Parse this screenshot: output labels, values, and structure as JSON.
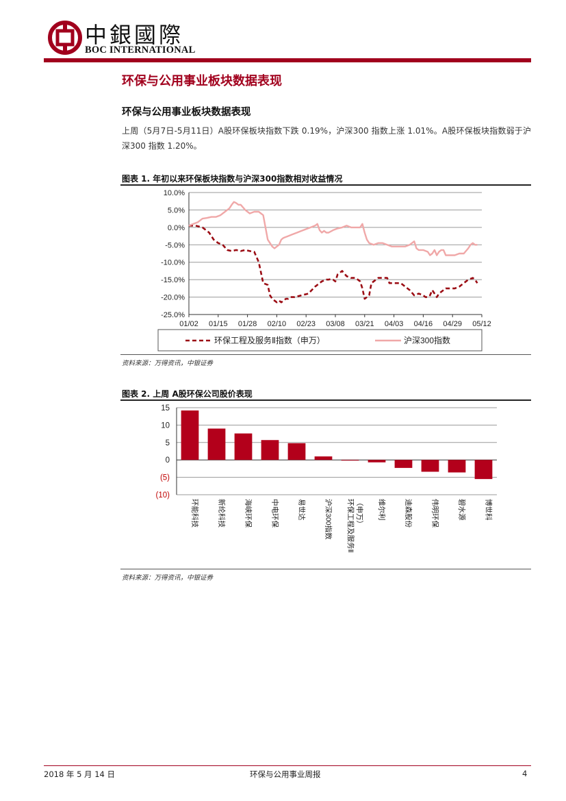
{
  "header": {
    "logo_cn": "中銀國際",
    "logo_en": "BOC INTERNATIONAL",
    "page_title": "环保与公用事业板块数据表现"
  },
  "section": {
    "title": "环保与公用事业板块数据表现",
    "paragraph": "上周（5月7日-5月11日）A股环保板块指数下跌 0.19%，沪深300 指数上涨 1.01%。A股环保板块指数弱于沪深300 指数 1.20%。"
  },
  "figure1": {
    "title": "图表 1. 年初以来环保板块指数与沪深300指数相对收益情况",
    "source": "资料来源：万得资讯，中银证券"
  },
  "figure2": {
    "title": "图表 2. 上周 A股环保公司股价表现",
    "source": "资料来源：万得资讯，中银证券"
  },
  "footer": {
    "date": "2018 年 5 月 14 日",
    "report_name": "环保与公用事业周报",
    "page_number": "4"
  },
  "colors": {
    "brand_red": "#a1001d",
    "hs300_pink": "#f0a8a8",
    "bar_red": "#b3001b",
    "negative_label": "#c00000"
  },
  "chart_data": [
    {
      "type": "line",
      "ylim": [
        -25,
        10
      ],
      "yticks": [
        10,
        5,
        0,
        -5,
        -10,
        -15,
        -20,
        -25
      ],
      "ytick_labels": [
        "10.0%",
        "5.0%",
        "0.0%",
        "-5.0%",
        "-10.0%",
        "-15.0%",
        "-20.0%",
        "-25.0%"
      ],
      "x_tick_labels": [
        "01/02",
        "01/15",
        "01/28",
        "02/10",
        "02/23",
        "03/08",
        "03/21",
        "04/03",
        "04/16",
        "04/29",
        "05/12"
      ],
      "xlim_days": [
        0,
        130
      ],
      "legend_location": "bottom",
      "series": [
        {
          "name": "环保工程及服务Ⅱ指数（申万）",
          "style": "dashed",
          "x": [
            0,
            3,
            6,
            9,
            11,
            13,
            15,
            17,
            19,
            21,
            23,
            25,
            27,
            29,
            31,
            33,
            35,
            36,
            37,
            38,
            39,
            40,
            41,
            42,
            43,
            44,
            45,
            47,
            50,
            53,
            56,
            59,
            61,
            62,
            63,
            64,
            65,
            66,
            67,
            68,
            70,
            72,
            74,
            76,
            77,
            78,
            79,
            80,
            81,
            82,
            84,
            86,
            88,
            89,
            90,
            91,
            92,
            93,
            94,
            96,
            98,
            100,
            102,
            104,
            105,
            106,
            107,
            108,
            110,
            111,
            112,
            113,
            114,
            116,
            118,
            120,
            122,
            124,
            126,
            127,
            128
          ],
          "y": [
            0.5,
            0.5,
            0,
            -1.5,
            -3.5,
            -4.5,
            -5,
            -6.5,
            -6.8,
            -6.5,
            -6.8,
            -6.5,
            -6.8,
            -7,
            -10,
            -16,
            -16.5,
            -19.5,
            -20.5,
            -21,
            -21.5,
            -21,
            -21.5,
            -21,
            -20.5,
            -20.5,
            -20,
            -20,
            -19.5,
            -19,
            -17,
            -15.5,
            -15,
            -15,
            -14.8,
            -15,
            -15.5,
            -13.5,
            -13,
            -12.5,
            -14,
            -14.5,
            -14.5,
            -15.5,
            -17.5,
            -20.5,
            -20,
            -19.5,
            -16,
            -15.5,
            -14.5,
            -14.5,
            -14.5,
            -16,
            -16,
            -16,
            -16,
            -16,
            -16,
            -17,
            -18,
            -19.5,
            -19,
            -19.5,
            -20,
            -20,
            -19.5,
            -18,
            -20,
            -19,
            -18.5,
            -18,
            -17.5,
            -17.5,
            -17.5,
            -17,
            -16,
            -15,
            -14.5,
            -15,
            -16
          ]
        },
        {
          "name": "沪深300指数",
          "style": "solid",
          "x": [
            0,
            2,
            4,
            6,
            8,
            10,
            12,
            14,
            16,
            18,
            19,
            20,
            21,
            22,
            23,
            25,
            27,
            29,
            31,
            33,
            35,
            37,
            38,
            39,
            40,
            41,
            42,
            44,
            46,
            48,
            50,
            52,
            54,
            56,
            57,
            58,
            59,
            60,
            61,
            62,
            64,
            66,
            68,
            70,
            72,
            74,
            76,
            77,
            78,
            79,
            80,
            82,
            84,
            86,
            88,
            90,
            92,
            94,
            96,
            98,
            100,
            101,
            102,
            104,
            106,
            107,
            108,
            109,
            110,
            111,
            112,
            113,
            114,
            115,
            116,
            118,
            120,
            122,
            124,
            125,
            126,
            127,
            128
          ],
          "y": [
            0.5,
            1,
            1.5,
            2.5,
            2.7,
            3,
            3,
            3.5,
            4.5,
            5.5,
            6.5,
            7.3,
            7,
            6.5,
            6.5,
            5,
            4,
            4.5,
            4.5,
            3.5,
            -3.5,
            -5.5,
            -6,
            -5.5,
            -5,
            -3.5,
            -3,
            -2.5,
            -2,
            -1.5,
            -1,
            -0.5,
            0,
            0.5,
            1,
            -0.8,
            -1.5,
            -1,
            -1.5,
            -1.5,
            -0.8,
            -0.3,
            0,
            0.5,
            0,
            0,
            0,
            1,
            -1.5,
            -3.5,
            -4.5,
            -5,
            -4.5,
            -4.5,
            -5,
            -5.5,
            -5.5,
            -5.5,
            -5.5,
            -5,
            -4,
            -6,
            -6.5,
            -6.5,
            -7,
            -8,
            -7.5,
            -6.5,
            -8,
            -7,
            -6.5,
            -6.5,
            -8,
            -8,
            -8,
            -8,
            -7.5,
            -7.5,
            -6,
            -5,
            -4.5,
            -5,
            -5
          ]
        }
      ]
    },
    {
      "type": "bar",
      "ylim": [
        -10,
        15
      ],
      "yticks": [
        15,
        10,
        5,
        0,
        -5,
        -10
      ],
      "ytick_labels": [
        "15",
        "10",
        "5",
        "0",
        "(5)",
        "(10)"
      ],
      "categories": [
        "环能科技",
        "新纶科技",
        "海峡环保",
        "中电环保",
        "易世达",
        "沪深300指数",
        "环保工程及服务Ⅱ（申万）",
        "维尔利",
        "迪森股份",
        "伟明环保",
        "碧水源",
        "博世科"
      ],
      "values": [
        14.2,
        9.0,
        7.6,
        5.7,
        4.8,
        1.0,
        -0.2,
        -0.7,
        -2.3,
        -3.4,
        -3.6,
        -5.5
      ]
    }
  ]
}
